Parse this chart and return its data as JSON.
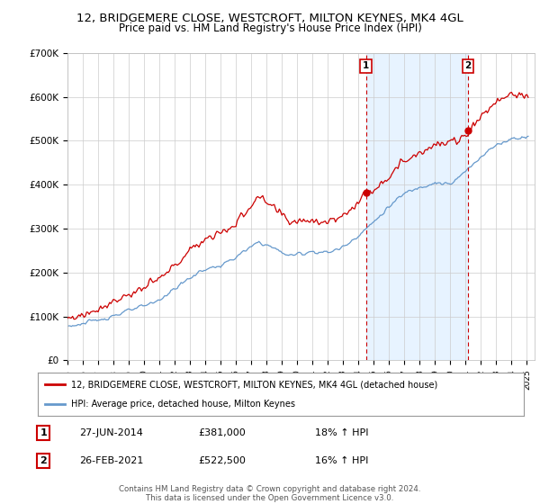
{
  "title": "12, BRIDGEMERE CLOSE, WESTCROFT, MILTON KEYNES, MK4 4GL",
  "subtitle": "Price paid vs. HM Land Registry's House Price Index (HPI)",
  "ylabel_ticks": [
    "£0",
    "£100K",
    "£200K",
    "£300K",
    "£400K",
    "£500K",
    "£600K",
    "£700K"
  ],
  "ylim": [
    0,
    700000
  ],
  "xlim_start": 1995.0,
  "xlim_end": 2025.5,
  "sale1_date": 2014.49,
  "sale1_price": 381000,
  "sale1_label": "27-JUN-2014",
  "sale1_amount": "£381,000",
  "sale1_hpi": "18% ↑ HPI",
  "sale2_date": 2021.15,
  "sale2_price": 522500,
  "sale2_label": "26-FEB-2021",
  "sale2_amount": "£522,500",
  "sale2_hpi": "16% ↑ HPI",
  "line1_color": "#cc0000",
  "line2_color": "#6699cc",
  "shade_color": "#ddeeff",
  "background_color": "#ffffff",
  "grid_color": "#cccccc",
  "legend_line1": "12, BRIDGEMERE CLOSE, WESTCROFT, MILTON KEYNES, MK4 4GL (detached house)",
  "legend_line2": "HPI: Average price, detached house, Milton Keynes",
  "footer1": "Contains HM Land Registry data © Crown copyright and database right 2024.",
  "footer2": "This data is licensed under the Open Government Licence v3.0."
}
